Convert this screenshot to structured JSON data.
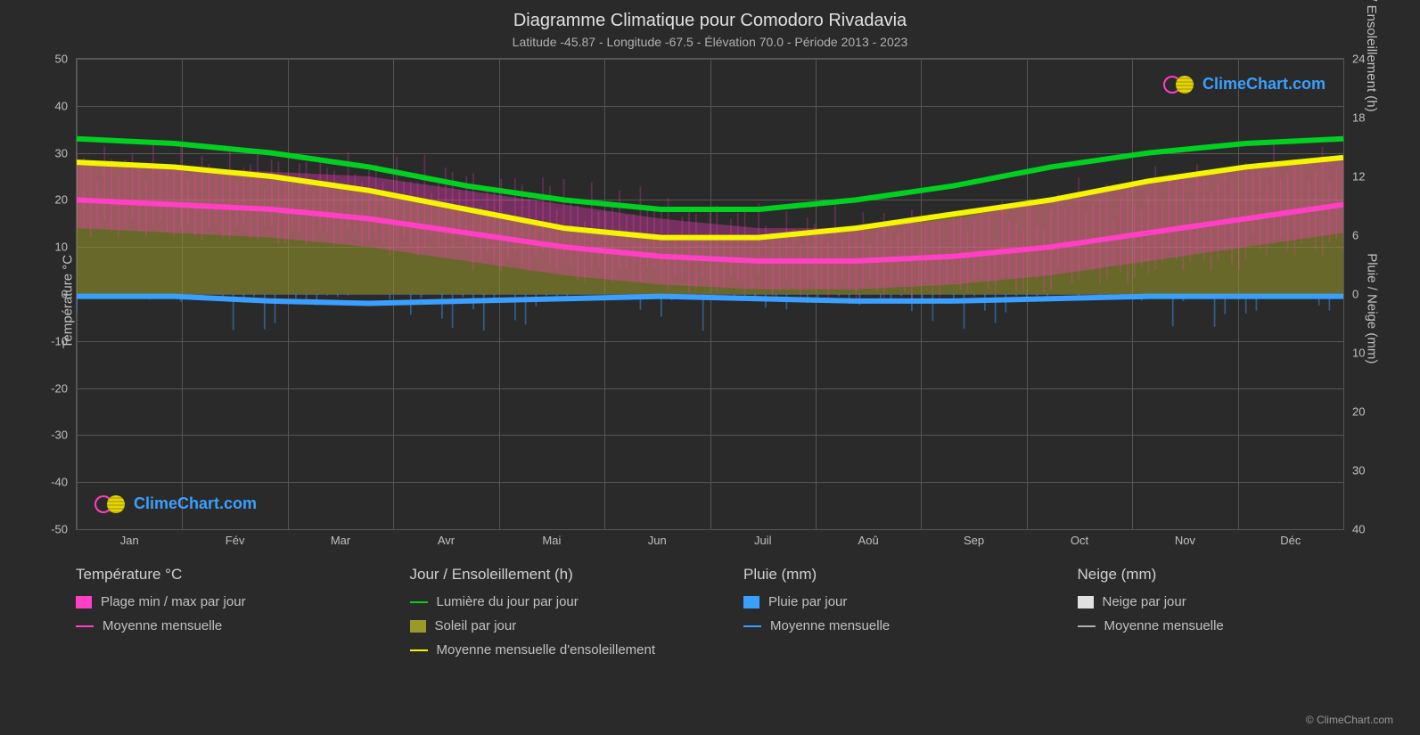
{
  "title": "Diagramme Climatique pour Comodoro Rivadavia",
  "subtitle": "Latitude -45.87 - Longitude -67.5 - Élévation 70.0 - Période 2013 - 2023",
  "watermark_text": "ClimeChart.com",
  "watermark_color": "#3aa0ff",
  "copyright": "© ClimeChart.com",
  "background_color": "#2a2a2a",
  "grid_color": "#555555",
  "text_color": "#c0c0c0",
  "y_left": {
    "label": "Température °C",
    "min": -50,
    "max": 50,
    "ticks": [
      50,
      40,
      30,
      20,
      10,
      0,
      -10,
      -20,
      -30,
      -40,
      -50
    ]
  },
  "y_right_top": {
    "label": "Jour / Ensoleillement (h)",
    "min": 0,
    "max": 24,
    "ticks_at_temp": [
      {
        "t": 50,
        "v": 24
      },
      {
        "t": 37.5,
        "v": 18
      },
      {
        "t": 25,
        "v": 12
      },
      {
        "t": 12.5,
        "v": 6
      },
      {
        "t": 0,
        "v": 0
      }
    ]
  },
  "y_right_bottom": {
    "label": "Pluie / Neige (mm)",
    "ticks_at_temp": [
      {
        "t": -12.5,
        "v": 10
      },
      {
        "t": -25,
        "v": 20
      },
      {
        "t": -37.5,
        "v": 30
      },
      {
        "t": -50,
        "v": 40
      }
    ]
  },
  "months": [
    "Jan",
    "Fév",
    "Mar",
    "Avr",
    "Mai",
    "Jun",
    "Juil",
    "Aoû",
    "Sep",
    "Oct",
    "Nov",
    "Déc"
  ],
  "series": {
    "daylight": {
      "color": "#00d020",
      "label": "Lumière du jour par jour",
      "width": 2,
      "values": [
        33,
        32,
        30,
        27,
        23,
        20,
        18,
        18,
        20,
        23,
        27,
        30,
        32,
        33
      ]
    },
    "sunshine_avg": {
      "color": "#f5f500",
      "label": "Moyenne mensuelle d'ensoleillement",
      "width": 2,
      "values": [
        28,
        27,
        25,
        22,
        18,
        14,
        12,
        12,
        14,
        17,
        20,
        24,
        27,
        29
      ]
    },
    "sun_fill": {
      "color": "#9a9a2a",
      "label": "Soleil par jour",
      "opacity": 0.55
    },
    "temp_avg": {
      "color": "#ff3fc4",
      "label": "Moyenne mensuelle",
      "width": 2,
      "values": [
        20,
        19,
        18,
        16,
        13,
        10,
        8,
        7,
        7,
        8,
        10,
        13,
        16,
        19
      ]
    },
    "temp_range": {
      "color": "#ff3fc4",
      "label": "Plage min / max par jour",
      "max_values": [
        28,
        27,
        26,
        25,
        22,
        19,
        16,
        14,
        14,
        16,
        20,
        24,
        27,
        29
      ],
      "min_values": [
        14,
        13,
        12,
        10,
        7,
        4,
        2,
        1,
        1,
        2,
        4,
        7,
        10,
        13
      ],
      "opacity": 0.35
    },
    "rain_avg": {
      "color": "#3aa0ff",
      "label": "Moyenne mensuelle",
      "width": 2,
      "values": [
        -0.5,
        -0.5,
        -1.5,
        -2,
        -1.5,
        -1,
        -0.5,
        -1,
        -1.5,
        -1.5,
        -1,
        -0.5,
        -0.5,
        -0.5
      ]
    },
    "rain_daily": {
      "color": "#3aa0ff",
      "label": "Pluie par jour"
    },
    "snow_daily": {
      "color": "#e0e0e0",
      "label": "Neige par jour"
    },
    "snow_avg": {
      "color": "#b0b0b0",
      "label": "Moyenne mensuelle"
    }
  },
  "legend": {
    "col1": {
      "header": "Température °C",
      "items": [
        {
          "type": "box",
          "colorKey": "series.temp_range.color",
          "labelKey": "series.temp_range.label"
        },
        {
          "type": "line",
          "colorKey": "series.temp_avg.color",
          "labelKey": "series.temp_avg.label"
        }
      ]
    },
    "col2": {
      "header": "Jour / Ensoleillement (h)",
      "items": [
        {
          "type": "line",
          "colorKey": "series.daylight.color",
          "labelKey": "series.daylight.label"
        },
        {
          "type": "box",
          "colorKey": "series.sun_fill.color",
          "labelKey": "series.sun_fill.label"
        },
        {
          "type": "line",
          "colorKey": "series.sunshine_avg.color",
          "labelKey": "series.sunshine_avg.label"
        }
      ]
    },
    "col3": {
      "header": "Pluie (mm)",
      "items": [
        {
          "type": "box",
          "colorKey": "series.rain_daily.color",
          "labelKey": "series.rain_daily.label"
        },
        {
          "type": "line",
          "colorKey": "series.rain_avg.color",
          "labelKey": "series.rain_avg.label"
        }
      ]
    },
    "col4": {
      "header": "Neige (mm)",
      "items": [
        {
          "type": "box",
          "colorKey": "series.snow_daily.color",
          "labelKey": "series.snow_daily.label"
        },
        {
          "type": "line",
          "colorKey": "series.snow_avg.color",
          "labelKey": "series.snow_avg.label"
        }
      ]
    }
  }
}
